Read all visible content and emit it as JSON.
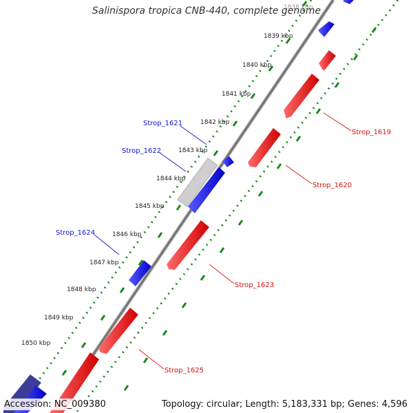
{
  "title": "Salinispora tropica CNB-440, complete genome",
  "footer": {
    "accession": "Accession: NC_009380",
    "summary": "Topology: circular; Length: 5,183,331 bp; Genes: 4,596"
  },
  "colors": {
    "forward_gene": "#1010ee",
    "reverse_gene": "#ee1010",
    "partial_gene": "#cccccc",
    "backbone": "#7a7a7a",
    "tick_forward": "#1a8a1a",
    "tick_reverse": "#1a8a1a"
  },
  "kbp_labels": [
    "1838 kbp",
    "1839 kbp",
    "1840 kbp",
    "1841 kbp",
    "1842 kbp",
    "1843 kbp",
    "1844 kbp",
    "1845 kbp",
    "1846 kbp",
    "1847 kbp",
    "1848 kbp",
    "1849 kbp",
    "1850 kbp"
  ],
  "gene_labels": {
    "forward": [
      "Strop_1621",
      "Strop_1622",
      "Strop_1624"
    ],
    "reverse": [
      "Strop_1619",
      "Strop_1620",
      "Strop_1623",
      "Strop_1625"
    ]
  }
}
